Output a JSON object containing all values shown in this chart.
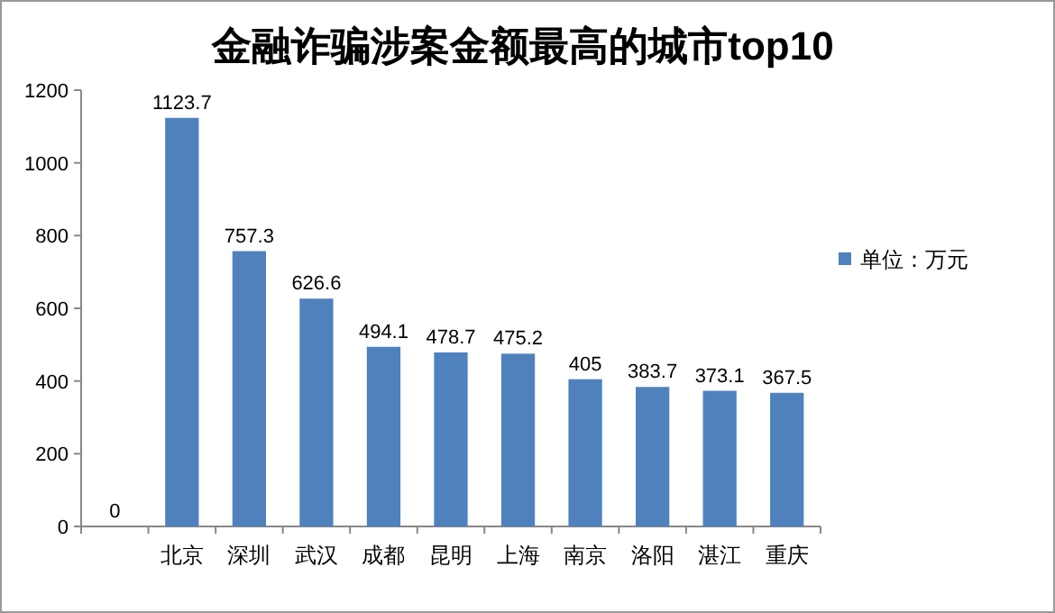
{
  "chart_data": {
    "type": "bar",
    "title": "金融诈骗涉案金额最高的城市top10",
    "categories": [
      null,
      "北京",
      "深圳",
      "武汉",
      "成都",
      "昆明",
      "上海",
      "南京",
      "洛阳",
      "湛江",
      "重庆"
    ],
    "series": [
      {
        "name": "单位：万元",
        "color": "#4f81bd",
        "values": [
          0,
          1123.7,
          757.3,
          626.6,
          494.1,
          478.7,
          475.2,
          405,
          383.7,
          373.1,
          367.5
        ]
      }
    ],
    "ylim": [
      0,
      1200
    ],
    "yticks": [
      0,
      200,
      400,
      600,
      800,
      1000,
      1200
    ],
    "data_labels": true,
    "legend": "right"
  }
}
